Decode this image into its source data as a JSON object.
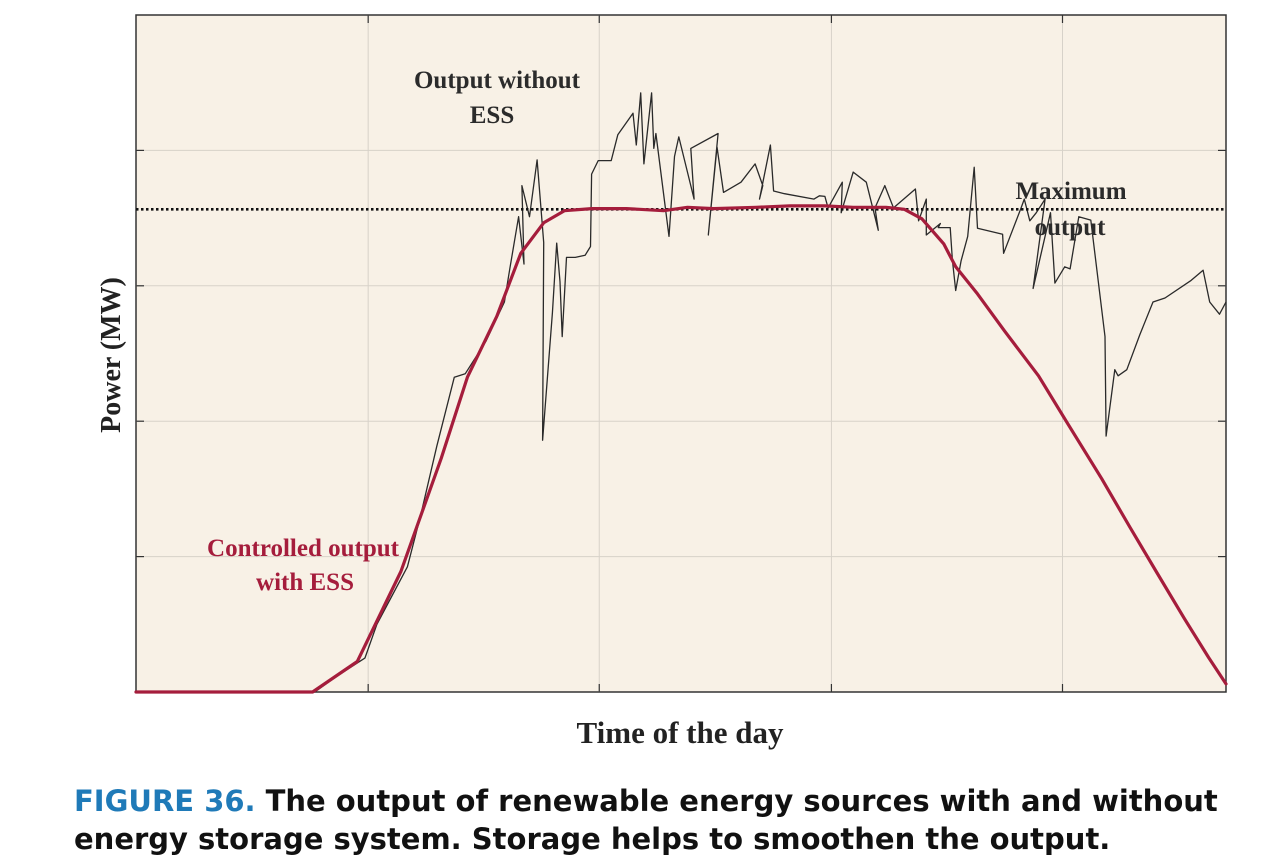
{
  "colors": {
    "plot_background": "#f8f1e6",
    "grid": "#d7d2c9",
    "raw_line": "#2a2a2a",
    "controlled_line": "#a51d3c",
    "max_line": "#111111",
    "caption_label": "#1f7ab8"
  },
  "chart_data": {
    "type": "line",
    "title": "",
    "xlabel": "Time of the day",
    "ylabel": "Power (MW)",
    "xlim": [
      0,
      100
    ],
    "ylim": [
      0,
      100
    ],
    "x_ticks": [
      21.3,
      42.5,
      63.8,
      85
    ],
    "y_ticks": [
      20,
      40,
      60,
      80
    ],
    "tick_labels_shown": false,
    "grid": true,
    "max_output_level": 71.3,
    "series": [
      {
        "name": "Output without ESS",
        "color": "#2a2a2a",
        "points": [
          [
            0,
            0
          ],
          [
            16.4,
            0
          ],
          [
            18.3,
            2.2
          ],
          [
            21,
            5
          ],
          [
            22.1,
            10
          ],
          [
            24.9,
            18.5
          ],
          [
            26.1,
            26
          ],
          [
            27.6,
            36.3
          ],
          [
            29.2,
            46.5
          ],
          [
            30.2,
            47
          ],
          [
            32.1,
            51.8
          ],
          [
            33.8,
            57.6
          ],
          [
            34.3,
            62.6
          ],
          [
            35.1,
            70.2
          ],
          [
            35.6,
            63.2
          ],
          [
            35.4,
            74.8
          ],
          [
            36.1,
            70.2
          ],
          [
            36.8,
            78.6
          ],
          [
            37.4,
            66.4
          ],
          [
            37.3,
            37.2
          ],
          [
            38.2,
            56
          ],
          [
            38.6,
            66.3
          ],
          [
            38.9,
            60.6
          ],
          [
            39.1,
            52.5
          ],
          [
            39.5,
            64.2
          ],
          [
            40.3,
            64.2
          ],
          [
            41.2,
            64.5
          ],
          [
            41.7,
            65.8
          ],
          [
            41.8,
            76.5
          ],
          [
            42.4,
            78.5
          ],
          [
            43.6,
            78.5
          ],
          [
            44.2,
            82.3
          ],
          [
            45.6,
            85.5
          ],
          [
            45.9,
            80.8
          ],
          [
            46.3,
            88.5
          ],
          [
            46.6,
            78
          ],
          [
            47.3,
            88.5
          ],
          [
            47.5,
            80.3
          ],
          [
            47.7,
            82.5
          ],
          [
            48.9,
            67.3
          ],
          [
            49.4,
            79.1
          ],
          [
            49.8,
            82
          ],
          [
            51.2,
            72.8
          ],
          [
            50.9,
            80.3
          ],
          [
            53.4,
            82.5
          ],
          [
            52.5,
            67.5
          ],
          [
            53.3,
            80.5
          ],
          [
            53.9,
            73.8
          ],
          [
            55.5,
            75.3
          ],
          [
            56.8,
            78
          ],
          [
            57.5,
            74.8
          ],
          [
            57.2,
            72.8
          ],
          [
            58.2,
            80.8
          ],
          [
            58.5,
            74
          ],
          [
            59.5,
            73.6
          ],
          [
            62.2,
            72.8
          ],
          [
            62.7,
            73.3
          ],
          [
            63.2,
            73.2
          ],
          [
            63.5,
            71.5
          ],
          [
            64.8,
            75.3
          ],
          [
            64.7,
            70.8
          ],
          [
            65.8,
            76.8
          ],
          [
            67,
            75.3
          ],
          [
            68.1,
            68.2
          ],
          [
            67.8,
            71.5
          ],
          [
            68.7,
            74.8
          ],
          [
            69.5,
            71.5
          ],
          [
            71.5,
            74.3
          ],
          [
            71.8,
            69.6
          ],
          [
            72.5,
            72.8
          ],
          [
            72.5,
            67.5
          ],
          [
            73.8,
            69.2
          ],
          [
            73.6,
            68.6
          ],
          [
            74.7,
            68.6
          ],
          [
            74.9,
            63.8
          ],
          [
            75.2,
            59.3
          ],
          [
            75.7,
            63.7
          ],
          [
            76.3,
            67.3
          ],
          [
            76.9,
            77.5
          ],
          [
            77.2,
            68.5
          ],
          [
            79.5,
            67.6
          ],
          [
            79.6,
            64.8
          ],
          [
            81.2,
            71.5
          ],
          [
            81.5,
            72.8
          ],
          [
            82,
            69.6
          ],
          [
            82.6,
            70.8
          ],
          [
            83.4,
            72.8
          ],
          [
            82.3,
            59.6
          ],
          [
            83.9,
            70.8
          ],
          [
            84.3,
            60.4
          ],
          [
            85.2,
            62.8
          ],
          [
            85.7,
            62.5
          ],
          [
            86.5,
            70.2
          ],
          [
            87.6,
            69.7
          ],
          [
            88.9,
            52.5
          ],
          [
            89,
            37.8
          ],
          [
            89.8,
            47.6
          ],
          [
            90.1,
            46.7
          ],
          [
            90.9,
            47.6
          ],
          [
            92.1,
            52.8
          ],
          [
            93.3,
            57.6
          ],
          [
            94.4,
            58.2
          ],
          [
            96.8,
            60.8
          ],
          [
            97.9,
            62.3
          ],
          [
            98.5,
            57.6
          ],
          [
            99.4,
            55.8
          ],
          [
            100,
            57.6
          ]
        ]
      },
      {
        "name": "Controlled output with ESS",
        "color": "#a51d3c",
        "points": [
          [
            0,
            0
          ],
          [
            16.2,
            0
          ],
          [
            20.3,
            4.5
          ],
          [
            24.3,
            17.8
          ],
          [
            28,
            34.5
          ],
          [
            30.4,
            46.5
          ],
          [
            33.1,
            55.5
          ],
          [
            35.3,
            64.8
          ],
          [
            37.4,
            69.3
          ],
          [
            39.3,
            71.1
          ],
          [
            41.8,
            71.4
          ],
          [
            45,
            71.4
          ],
          [
            48.4,
            71.1
          ],
          [
            50.6,
            71.6
          ],
          [
            53,
            71.4
          ],
          [
            56.9,
            71.6
          ],
          [
            60,
            71.8
          ],
          [
            63.2,
            71.8
          ],
          [
            65.8,
            71.6
          ],
          [
            68.8,
            71.6
          ],
          [
            70.5,
            71.3
          ],
          [
            72.1,
            69.9
          ],
          [
            74.1,
            66.2
          ],
          [
            75.2,
            62.8
          ],
          [
            77.2,
            58.8
          ],
          [
            79.7,
            53.3
          ],
          [
            82.8,
            46.7
          ],
          [
            85.5,
            39.6
          ],
          [
            88.6,
            31.5
          ],
          [
            91.2,
            24.3
          ],
          [
            93.6,
            17.8
          ],
          [
            96.2,
            10.8
          ],
          [
            98.4,
            5.1
          ],
          [
            100,
            1.2
          ]
        ]
      },
      {
        "name": "Maximum output",
        "color": "#111111",
        "style": "dotted",
        "y": 71.3
      }
    ],
    "annotations": [
      {
        "lines": [
          "Output without",
          "ESS"
        ],
        "target": "Output without ESS"
      },
      {
        "lines": [
          "Maximum",
          "output"
        ],
        "target": "Maximum output"
      },
      {
        "lines": [
          "Controlled output",
          "with ESS"
        ],
        "target": "Controlled output with ESS"
      }
    ]
  },
  "caption": {
    "figure_label": "FIGURE 36.",
    "text": "The output of renewable energy sources with and without energy storage system. Storage helps to smoothen the output."
  }
}
